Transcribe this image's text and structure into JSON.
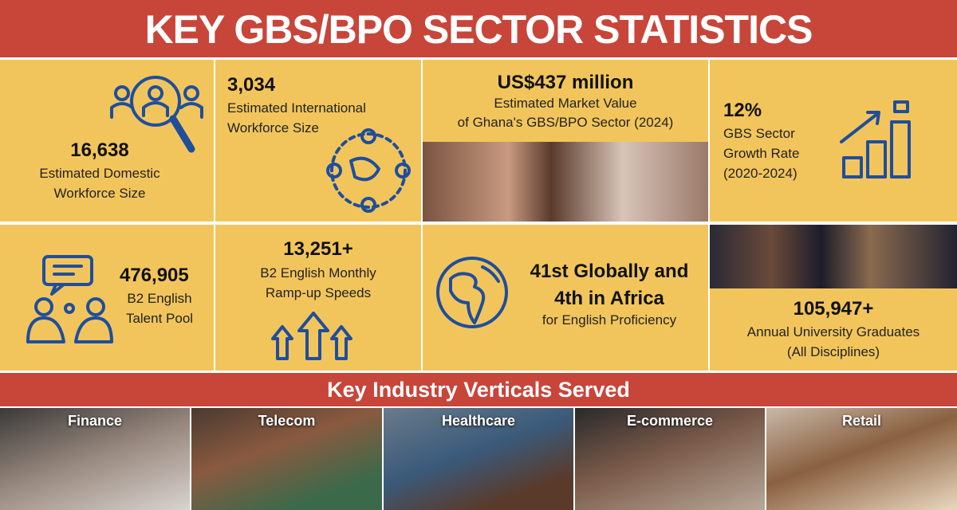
{
  "header": {
    "title": "KEY GBS/BPO SECTOR STATISTICS"
  },
  "stats": [
    {
      "value": "16,638",
      "label": [
        "Estimated Domestic",
        "Workforce Size"
      ]
    },
    {
      "value": "3,034",
      "label": [
        "Estimated International",
        "Workforce Size"
      ]
    },
    {
      "value": "US$437 million",
      "label": [
        "Estimated Market Value",
        "of Ghana's GBS/BPO Sector (2024)"
      ]
    },
    {
      "value": "12%",
      "label": [
        "GBS Sector",
        "Growth Rate",
        "(2020-2024)"
      ]
    },
    {
      "value": "476,905",
      "label": [
        "B2 English",
        "Talent Pool"
      ]
    },
    {
      "value": "13,251+",
      "label": [
        "B2 English Monthly",
        "Ramp-up Speeds"
      ]
    },
    {
      "value": [
        "41st Globally and",
        "4th in Africa"
      ],
      "label": [
        "for English Proficiency"
      ]
    },
    {
      "value": "105,947+",
      "label": [
        "Annual University Graduates",
        "(All Disciplines)"
      ]
    }
  ],
  "verticals": {
    "title": "Key Industry Verticals Served",
    "items": [
      "Finance",
      "Telecom",
      "Healthcare",
      "E-commerce",
      "Retail"
    ]
  }
}
